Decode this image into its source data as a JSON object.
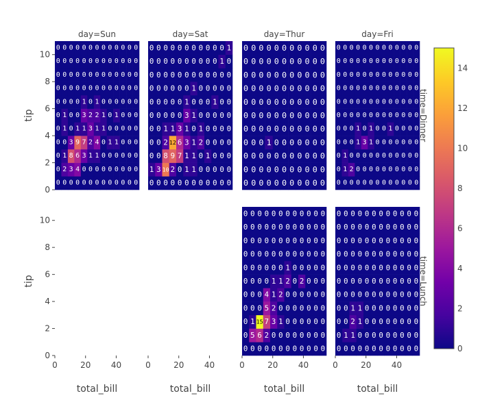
{
  "chart_data": {
    "type": "heatmap",
    "colorscale": [
      "#0d0887",
      "#46039f",
      "#7201a8",
      "#9c179e",
      "#bd3786",
      "#d8576b",
      "#ed7953",
      "#fb9f3a",
      "#fdca26",
      "#f0f921"
    ],
    "zmin": 0,
    "zmax": 15,
    "colorbar_ticks": [
      0,
      2,
      4,
      6,
      8,
      10,
      12,
      14
    ],
    "xlabel": "total_bill",
    "ylabel": "tip",
    "x_range": [
      0,
      55
    ],
    "y_range": [
      0,
      11
    ],
    "x_ticks": [
      0,
      20,
      40
    ],
    "y_ticks": [
      0,
      2,
      4,
      6,
      8,
      10
    ],
    "facet_col_labels": [
      "day=Sun",
      "day=Sat",
      "day=Thur",
      "day=Fri"
    ],
    "facet_row_labels": [
      "time=Dinner",
      "time=Lunch"
    ],
    "panels": [
      {
        "row": 0,
        "col": 0,
        "day": "day=Sun",
        "time": "time=Dinner",
        "x_start": 0,
        "x_end": 55,
        "y_start": 0,
        "y_end": 11,
        "z": [
          [
            0,
            0,
            0,
            0,
            0,
            0,
            0,
            0,
            0,
            0,
            0,
            0,
            0
          ],
          [
            0,
            2,
            3,
            4,
            0,
            0,
            0,
            0,
            0,
            0,
            0,
            0,
            0
          ],
          [
            0,
            1,
            8,
            6,
            3,
            1,
            1,
            0,
            0,
            0,
            0,
            0,
            0
          ],
          [
            0,
            0,
            3,
            9,
            7,
            2,
            4,
            0,
            1,
            1,
            0,
            0,
            0
          ],
          [
            0,
            1,
            0,
            1,
            1,
            3,
            1,
            1,
            0,
            0,
            0,
            0,
            0
          ],
          [
            0,
            1,
            0,
            0,
            3,
            2,
            2,
            1,
            0,
            1,
            0,
            0,
            0
          ],
          [
            0,
            0,
            0,
            0,
            1,
            0,
            1,
            0,
            0,
            0,
            0,
            0,
            0
          ],
          [
            0,
            0,
            0,
            0,
            0,
            0,
            0,
            0,
            0,
            0,
            0,
            0,
            0
          ],
          [
            0,
            0,
            0,
            0,
            0,
            0,
            0,
            0,
            0,
            0,
            0,
            0,
            0
          ],
          [
            0,
            0,
            0,
            0,
            0,
            0,
            0,
            0,
            0,
            0,
            0,
            0,
            0
          ],
          [
            0,
            0,
            0,
            0,
            0,
            0,
            0,
            0,
            0,
            0,
            0,
            0,
            0
          ]
        ]
      },
      {
        "row": 0,
        "col": 1,
        "day": "day=Sat",
        "time": "time=Dinner",
        "x_start": 0,
        "x_end": 55,
        "y_start": 0,
        "y_end": 11,
        "z": [
          [
            0,
            0,
            0,
            0,
            0,
            0,
            0,
            0,
            0,
            0,
            0,
            0
          ],
          [
            1,
            3,
            10,
            2,
            0,
            1,
            1,
            0,
            0,
            0,
            0,
            0
          ],
          [
            0,
            0,
            8,
            9,
            7,
            1,
            1,
            0,
            1,
            0,
            0,
            0
          ],
          [
            0,
            0,
            2,
            12,
            6,
            3,
            1,
            2,
            0,
            0,
            0,
            0
          ],
          [
            0,
            0,
            1,
            1,
            3,
            1,
            0,
            1,
            0,
            0,
            0,
            0
          ],
          [
            0,
            0,
            0,
            0,
            0,
            3,
            1,
            0,
            0,
            0,
            0,
            0
          ],
          [
            0,
            0,
            0,
            0,
            0,
            1,
            0,
            0,
            0,
            1,
            0,
            0
          ],
          [
            0,
            0,
            0,
            0,
            0,
            0,
            1,
            0,
            0,
            0,
            0,
            0
          ],
          [
            0,
            0,
            0,
            0,
            0,
            0,
            0,
            0,
            0,
            0,
            0,
            0
          ],
          [
            0,
            0,
            0,
            0,
            0,
            0,
            0,
            0,
            0,
            0,
            1,
            0
          ],
          [
            0,
            0,
            0,
            0,
            0,
            0,
            0,
            0,
            0,
            0,
            0,
            1
          ]
        ]
      },
      {
        "row": 0,
        "col": 2,
        "day": "day=Thur",
        "time": "time=Dinner",
        "x_start": 0,
        "x_end": 55,
        "y_start": 0,
        "y_end": 11,
        "z": [
          [
            0,
            0,
            0,
            0,
            0,
            0,
            0,
            0,
            0,
            0,
            0
          ],
          [
            0,
            0,
            0,
            0,
            0,
            0,
            0,
            0,
            0,
            0,
            0
          ],
          [
            0,
            0,
            0,
            0,
            0,
            0,
            0,
            0,
            0,
            0,
            0
          ],
          [
            0,
            0,
            0,
            1,
            0,
            0,
            0,
            0,
            0,
            0,
            0
          ],
          [
            0,
            0,
            0,
            0,
            0,
            0,
            0,
            0,
            0,
            0,
            0
          ],
          [
            0,
            0,
            0,
            0,
            0,
            0,
            0,
            0,
            0,
            0,
            0
          ],
          [
            0,
            0,
            0,
            0,
            0,
            0,
            0,
            0,
            0,
            0,
            0
          ],
          [
            0,
            0,
            0,
            0,
            0,
            0,
            0,
            0,
            0,
            0,
            0
          ],
          [
            0,
            0,
            0,
            0,
            0,
            0,
            0,
            0,
            0,
            0,
            0
          ],
          [
            0,
            0,
            0,
            0,
            0,
            0,
            0,
            0,
            0,
            0,
            0
          ],
          [
            0,
            0,
            0,
            0,
            0,
            0,
            0,
            0,
            0,
            0,
            0
          ]
        ]
      },
      {
        "row": 0,
        "col": 3,
        "day": "day=Fri",
        "time": "time=Dinner",
        "x_start": 0,
        "x_end": 55,
        "y_start": 0,
        "y_end": 11,
        "z": [
          [
            0,
            0,
            0,
            0,
            0,
            0,
            0,
            0,
            0,
            0,
            0,
            0,
            0
          ],
          [
            0,
            1,
            2,
            0,
            0,
            0,
            0,
            0,
            0,
            0,
            0,
            0,
            0
          ],
          [
            0,
            1,
            0,
            0,
            0,
            0,
            0,
            0,
            0,
            0,
            0,
            0,
            0
          ],
          [
            0,
            0,
            0,
            1,
            3,
            1,
            0,
            0,
            0,
            0,
            0,
            0,
            0
          ],
          [
            0,
            0,
            0,
            1,
            0,
            1,
            0,
            0,
            1,
            0,
            0,
            0,
            0
          ],
          [
            0,
            0,
            0,
            0,
            0,
            0,
            0,
            0,
            0,
            0,
            0,
            0,
            0
          ],
          [
            0,
            0,
            0,
            0,
            0,
            0,
            0,
            0,
            0,
            0,
            0,
            0,
            0
          ],
          [
            0,
            0,
            0,
            0,
            0,
            0,
            0,
            0,
            0,
            0,
            0,
            0,
            0
          ],
          [
            0,
            0,
            0,
            0,
            0,
            0,
            0,
            0,
            0,
            0,
            0,
            0,
            0
          ],
          [
            0,
            0,
            0,
            0,
            0,
            0,
            0,
            0,
            0,
            0,
            0,
            0,
            0
          ],
          [
            0,
            0,
            0,
            0,
            0,
            0,
            0,
            0,
            0,
            0,
            0,
            0,
            0
          ]
        ]
      },
      {
        "row": 1,
        "col": 2,
        "day": "day=Thur",
        "time": "time=Lunch",
        "x_start": 0,
        "x_end": 55,
        "y_start": 0,
        "y_end": 11,
        "z": [
          [
            0,
            0,
            0,
            0,
            0,
            0,
            0,
            0,
            0,
            0,
            0,
            0
          ],
          [
            0,
            5,
            6,
            2,
            0,
            0,
            0,
            0,
            0,
            0,
            0,
            0
          ],
          [
            0,
            1,
            15,
            7,
            3,
            1,
            0,
            0,
            0,
            0,
            0,
            0
          ],
          [
            0,
            0,
            0,
            5,
            2,
            0,
            0,
            0,
            0,
            0,
            0,
            0
          ],
          [
            0,
            0,
            0,
            4,
            1,
            2,
            0,
            0,
            0,
            0,
            0,
            0
          ],
          [
            0,
            0,
            0,
            0,
            1,
            1,
            2,
            0,
            2,
            0,
            0,
            0
          ],
          [
            0,
            0,
            0,
            0,
            0,
            0,
            1,
            0,
            0,
            0,
            0,
            0
          ],
          [
            0,
            0,
            0,
            0,
            0,
            0,
            0,
            0,
            0,
            0,
            0,
            0
          ],
          [
            0,
            0,
            0,
            0,
            0,
            0,
            0,
            0,
            0,
            0,
            0,
            0
          ],
          [
            0,
            0,
            0,
            0,
            0,
            0,
            0,
            0,
            0,
            0,
            0,
            0
          ],
          [
            0,
            0,
            0,
            0,
            0,
            0,
            0,
            0,
            0,
            0,
            0,
            0
          ]
        ]
      },
      {
        "row": 1,
        "col": 3,
        "day": "day=Fri",
        "time": "time=Lunch",
        "x_start": 0,
        "x_end": 55,
        "y_start": 0,
        "y_end": 11,
        "z": [
          [
            0,
            0,
            0,
            0,
            0,
            0,
            0,
            0,
            0,
            0,
            0,
            0
          ],
          [
            0,
            1,
            1,
            0,
            0,
            0,
            0,
            0,
            0,
            0,
            0,
            0
          ],
          [
            0,
            0,
            2,
            1,
            0,
            0,
            0,
            0,
            0,
            0,
            0,
            0
          ],
          [
            0,
            0,
            1,
            1,
            0,
            0,
            0,
            0,
            0,
            0,
            0,
            0
          ],
          [
            0,
            0,
            0,
            0,
            0,
            0,
            0,
            0,
            0,
            0,
            0,
            0
          ],
          [
            0,
            0,
            0,
            0,
            0,
            0,
            0,
            0,
            0,
            0,
            0,
            0
          ],
          [
            0,
            0,
            0,
            0,
            0,
            0,
            0,
            0,
            0,
            0,
            0,
            0
          ],
          [
            0,
            0,
            0,
            0,
            0,
            0,
            0,
            0,
            0,
            0,
            0,
            0
          ],
          [
            0,
            0,
            0,
            0,
            0,
            0,
            0,
            0,
            0,
            0,
            0,
            0
          ],
          [
            0,
            0,
            0,
            0,
            0,
            0,
            0,
            0,
            0,
            0,
            0,
            0
          ],
          [
            0,
            0,
            0,
            0,
            0,
            0,
            0,
            0,
            0,
            0,
            0,
            0
          ]
        ]
      }
    ]
  }
}
